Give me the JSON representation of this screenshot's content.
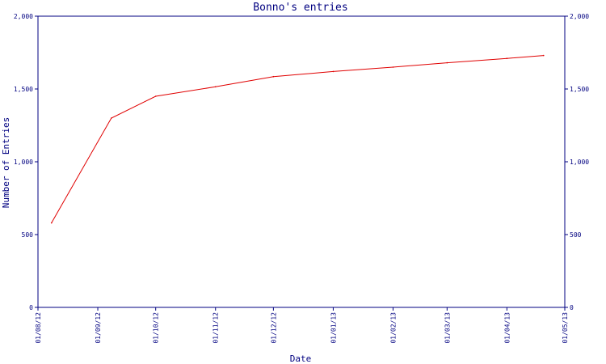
{
  "chart_data": {
    "type": "line",
    "title": "Bonno's entries",
    "xlabel": "Date",
    "ylabel": "Number of Entries",
    "x_tick_labels": [
      "01/08/12",
      "01/09/12",
      "01/10/12",
      "01/11/12",
      "01/12/12",
      "01/01/13",
      "01/02/13",
      "01/03/13",
      "01/04/13",
      "01/05/13"
    ],
    "y_tick_labels": [
      "0",
      "500",
      "1,000",
      "1,500",
      "2,000"
    ],
    "y_ticks": [
      0,
      500,
      1000,
      1500,
      2000
    ],
    "xlim": [
      "2012-08-01",
      "2013-05-01"
    ],
    "ylim": [
      0,
      2000
    ],
    "grid": false,
    "legend": "none",
    "series": [
      {
        "color": "#e00000",
        "points": [
          {
            "x": "2012-08-08",
            "y": 580
          },
          {
            "x": "2012-09-08",
            "y": 1300
          },
          {
            "x": "2012-10-01",
            "y": 1450
          },
          {
            "x": "2012-11-01",
            "y": 1515
          },
          {
            "x": "2012-12-01",
            "y": 1585
          },
          {
            "x": "2013-01-01",
            "y": 1620
          },
          {
            "x": "2013-02-01",
            "y": 1650
          },
          {
            "x": "2013-03-01",
            "y": 1680
          },
          {
            "x": "2013-04-01",
            "y": 1710
          },
          {
            "x": "2013-04-20",
            "y": 1730
          }
        ]
      }
    ]
  },
  "colors": {
    "axis": "#000080",
    "text": "#000080",
    "background": "#ffffff"
  }
}
